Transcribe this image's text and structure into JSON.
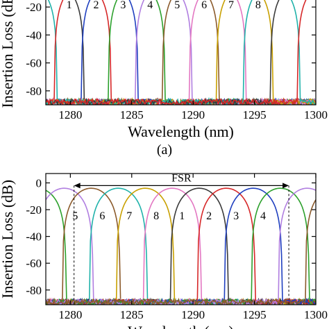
{
  "colors": [
    "#3a3a3a",
    "#d62728",
    "#1f3fbf",
    "#2ca02c",
    "#b07ee0",
    "#8b5a2b",
    "#e377c2",
    "#c8a000",
    "#20b2aa"
  ],
  "chart_data": [
    {
      "type": "line",
      "panel_label": "(a)",
      "xlabel": "Wavelength (nm)",
      "ylabel": "Insertion Loss (dB)",
      "xlim": [
        1278,
        1300
      ],
      "ylim": [
        -90,
        -10
      ],
      "xticks": [
        1280,
        1285,
        1290,
        1295,
        1300
      ],
      "yticks": [
        -20,
        -40,
        -60,
        -80
      ],
      "grid": false,
      "noise_floor_db": -88,
      "channel_labels": [
        {
          "text": "1",
          "x": 1279.9,
          "y": -18
        },
        {
          "text": "2",
          "x": 1282.1,
          "y": -18
        },
        {
          "text": "3",
          "x": 1284.3,
          "y": -18
        },
        {
          "text": "4",
          "x": 1286.5,
          "y": -18
        },
        {
          "text": "5",
          "x": 1288.7,
          "y": -18
        },
        {
          "text": "6",
          "x": 1290.9,
          "y": -18
        },
        {
          "text": "7",
          "x": 1293.1,
          "y": -18
        },
        {
          "text": "8",
          "x": 1295.3,
          "y": -18
        }
      ],
      "series": [
        {
          "center": 1276.6,
          "color_index": 8
        },
        {
          "center": 1278.8,
          "color_index": 0
        },
        {
          "center": 1281.0,
          "color_index": 1
        },
        {
          "center": 1283.2,
          "color_index": 2
        },
        {
          "center": 1285.4,
          "color_index": 3
        },
        {
          "center": 1287.6,
          "color_index": 4
        },
        {
          "center": 1289.8,
          "color_index": 5
        },
        {
          "center": 1292.0,
          "color_index": 6
        },
        {
          "center": 1294.2,
          "color_index": 7
        },
        {
          "center": 1296.4,
          "color_index": 8
        },
        {
          "center": 1298.6,
          "color_index": 0
        },
        {
          "center": 1300.8,
          "color_index": 1
        }
      ],
      "peak_db": -4,
      "half_width_nm": 2.3
    },
    {
      "type": "line",
      "xlabel": "Wavelength (nm)",
      "ylabel": "Insertion Loss (dB)",
      "xlim": [
        1278,
        1300
      ],
      "ylim": [
        -91,
        7
      ],
      "xticks": [
        1280,
        1285,
        1290,
        1295,
        1300
      ],
      "yticks": [
        0,
        -20,
        -40,
        -60,
        -80
      ],
      "grid": false,
      "fsr": {
        "label": "FSR",
        "x_start": 1280.3,
        "x_end": 1297.8,
        "y": -2
      },
      "channel_labels": [
        {
          "text": "5",
          "x": 1280.4,
          "y": -24
        },
        {
          "text": "6",
          "x": 1282.6,
          "y": -24
        },
        {
          "text": "7",
          "x": 1284.8,
          "y": -24
        },
        {
          "text": "8",
          "x": 1287.0,
          "y": -24
        },
        {
          "text": "1",
          "x": 1289.1,
          "y": -24
        },
        {
          "text": "2",
          "x": 1291.3,
          "y": -24
        },
        {
          "text": "3",
          "x": 1293.5,
          "y": -24
        },
        {
          "text": "4",
          "x": 1295.7,
          "y": -24
        }
      ],
      "series": [
        {
          "center": 1277.3,
          "color_index": 3
        },
        {
          "center": 1279.5,
          "color_index": 4
        },
        {
          "center": 1281.7,
          "color_index": 5
        },
        {
          "center": 1283.9,
          "color_index": 8
        },
        {
          "center": 1286.1,
          "color_index": 7
        },
        {
          "center": 1288.3,
          "color_index": 6
        },
        {
          "center": 1290.5,
          "color_index": 0
        },
        {
          "center": 1292.7,
          "color_index": 1
        },
        {
          "center": 1294.9,
          "color_index": 2
        },
        {
          "center": 1297.1,
          "color_index": 3
        },
        {
          "center": 1299.3,
          "color_index": 4
        },
        {
          "center": 1301.5,
          "color_index": 5
        }
      ],
      "peak_db": -4,
      "half_width_nm": 2.35,
      "noise_floor_db": -89
    }
  ]
}
